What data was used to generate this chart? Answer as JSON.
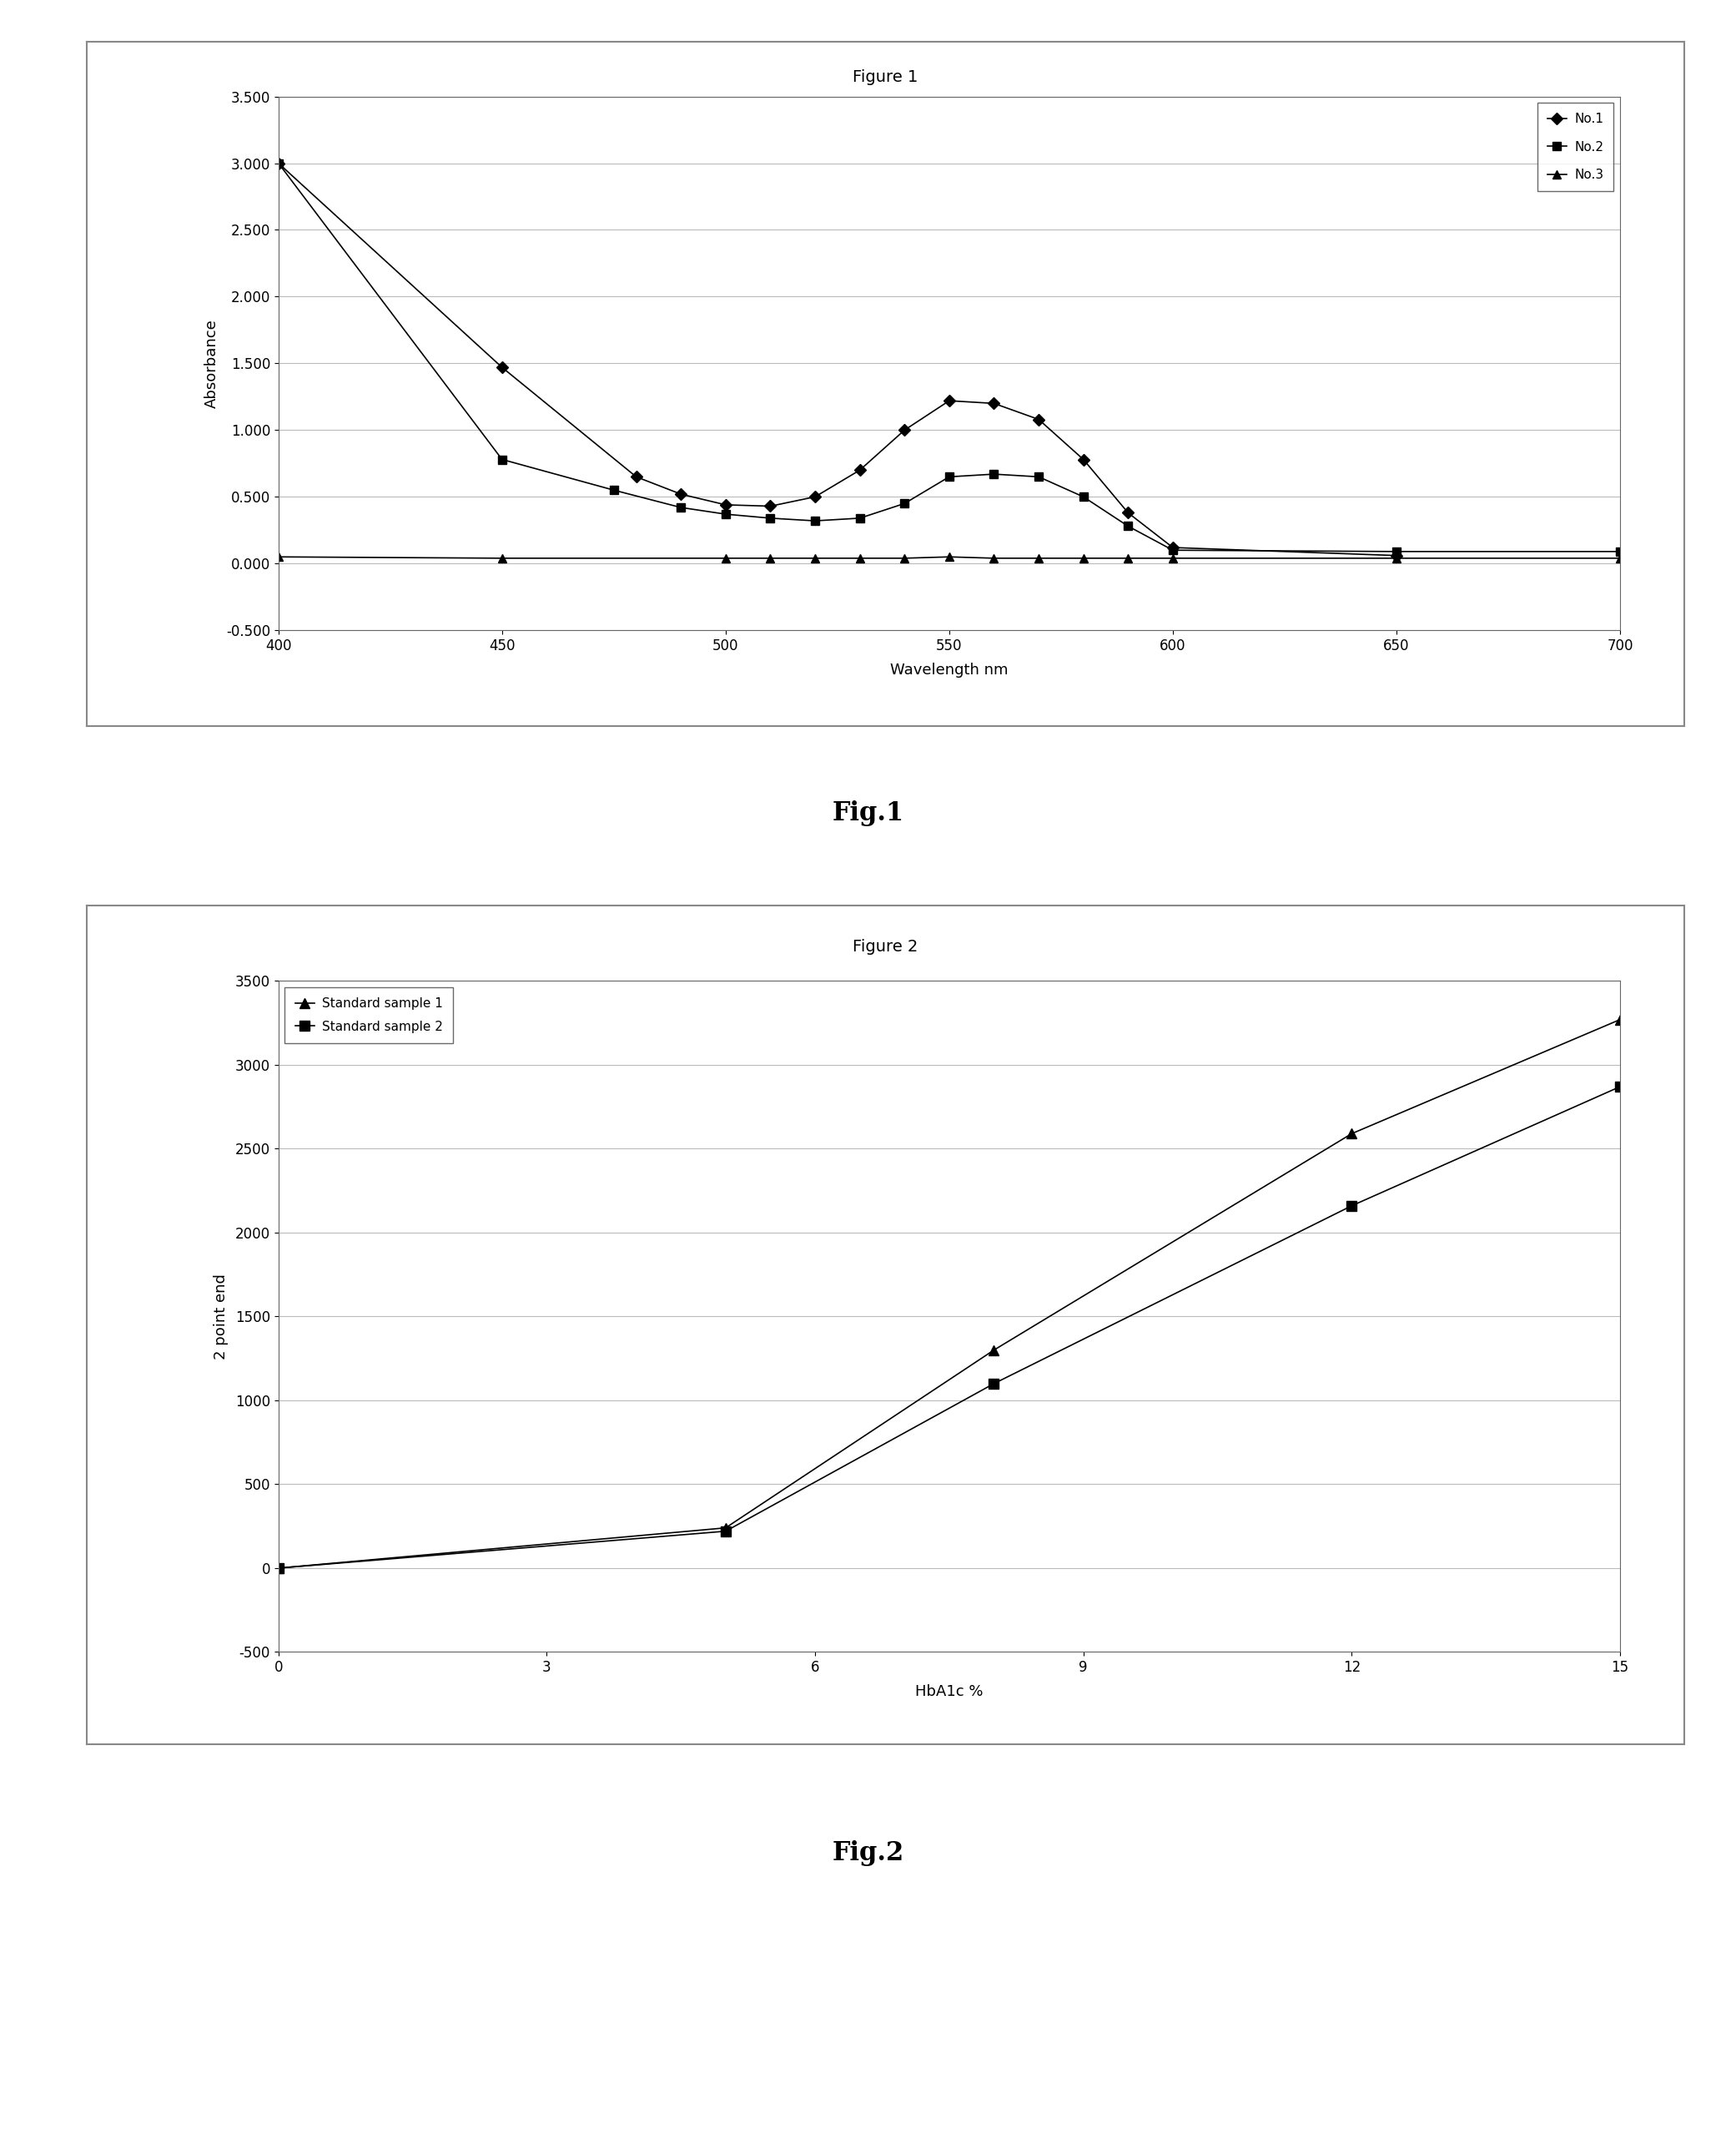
{
  "fig1": {
    "title": "Figure 1",
    "xlabel": "Wavelength nm",
    "ylabel": "Absorbance",
    "xlim": [
      400,
      700
    ],
    "ylim": [
      -0.5,
      3.5
    ],
    "yticks": [
      -0.5,
      0.0,
      0.5,
      1.0,
      1.5,
      2.0,
      2.5,
      3.0,
      3.5
    ],
    "xticks": [
      400,
      450,
      500,
      550,
      600,
      650,
      700
    ],
    "series": [
      {
        "label": "No.1",
        "marker": "D",
        "x": [
          400,
          450,
          480,
          490,
          500,
          510,
          520,
          530,
          540,
          550,
          560,
          570,
          580,
          590,
          600,
          650
        ],
        "y": [
          3.0,
          1.47,
          0.65,
          0.52,
          0.44,
          0.43,
          0.5,
          0.7,
          1.0,
          1.22,
          1.2,
          1.08,
          0.78,
          0.38,
          0.12,
          0.06
        ]
      },
      {
        "label": "No.2",
        "marker": "s",
        "x": [
          400,
          450,
          475,
          490,
          500,
          510,
          520,
          530,
          540,
          550,
          560,
          570,
          580,
          590,
          600,
          650,
          700
        ],
        "y": [
          3.0,
          0.78,
          0.55,
          0.42,
          0.37,
          0.34,
          0.32,
          0.34,
          0.45,
          0.65,
          0.67,
          0.65,
          0.5,
          0.28,
          0.1,
          0.09,
          0.09
        ]
      },
      {
        "label": "No.3",
        "marker": "^",
        "x": [
          400,
          450,
          500,
          510,
          520,
          530,
          540,
          550,
          560,
          570,
          580,
          590,
          600,
          650,
          700
        ],
        "y": [
          0.05,
          0.04,
          0.04,
          0.04,
          0.04,
          0.04,
          0.04,
          0.05,
          0.04,
          0.04,
          0.04,
          0.04,
          0.04,
          0.04,
          0.04
        ]
      }
    ]
  },
  "fig2": {
    "title": "Figure 2",
    "xlabel": "HbA1c %",
    "ylabel": "2 point end",
    "xlim": [
      0,
      15
    ],
    "ylim": [
      -500,
      3500
    ],
    "yticks": [
      -500,
      0,
      500,
      1000,
      1500,
      2000,
      2500,
      3000,
      3500
    ],
    "xticks": [
      0,
      3,
      6,
      9,
      12,
      15
    ],
    "series": [
      {
        "label": "Standard sample 1",
        "marker": "^",
        "x": [
          0,
          5,
          8,
          12,
          15
        ],
        "y": [
          0,
          240,
          1300,
          2590,
          3270
        ]
      },
      {
        "label": "Standard sample 2",
        "marker": "s",
        "x": [
          0,
          5,
          8,
          12,
          15
        ],
        "y": [
          0,
          220,
          1100,
          2160,
          2870
        ]
      }
    ]
  },
  "fig1_caption": "Fig.1",
  "fig2_caption": "Fig.2",
  "bg_color": "#ffffff",
  "box_border_color": "#888888",
  "grid_color": "#bbbbbb",
  "line_color": "#000000",
  "title_fontsize": 14,
  "tick_fontsize": 12,
  "label_fontsize": 13,
  "legend_fontsize": 11,
  "caption_fontsize": 22
}
